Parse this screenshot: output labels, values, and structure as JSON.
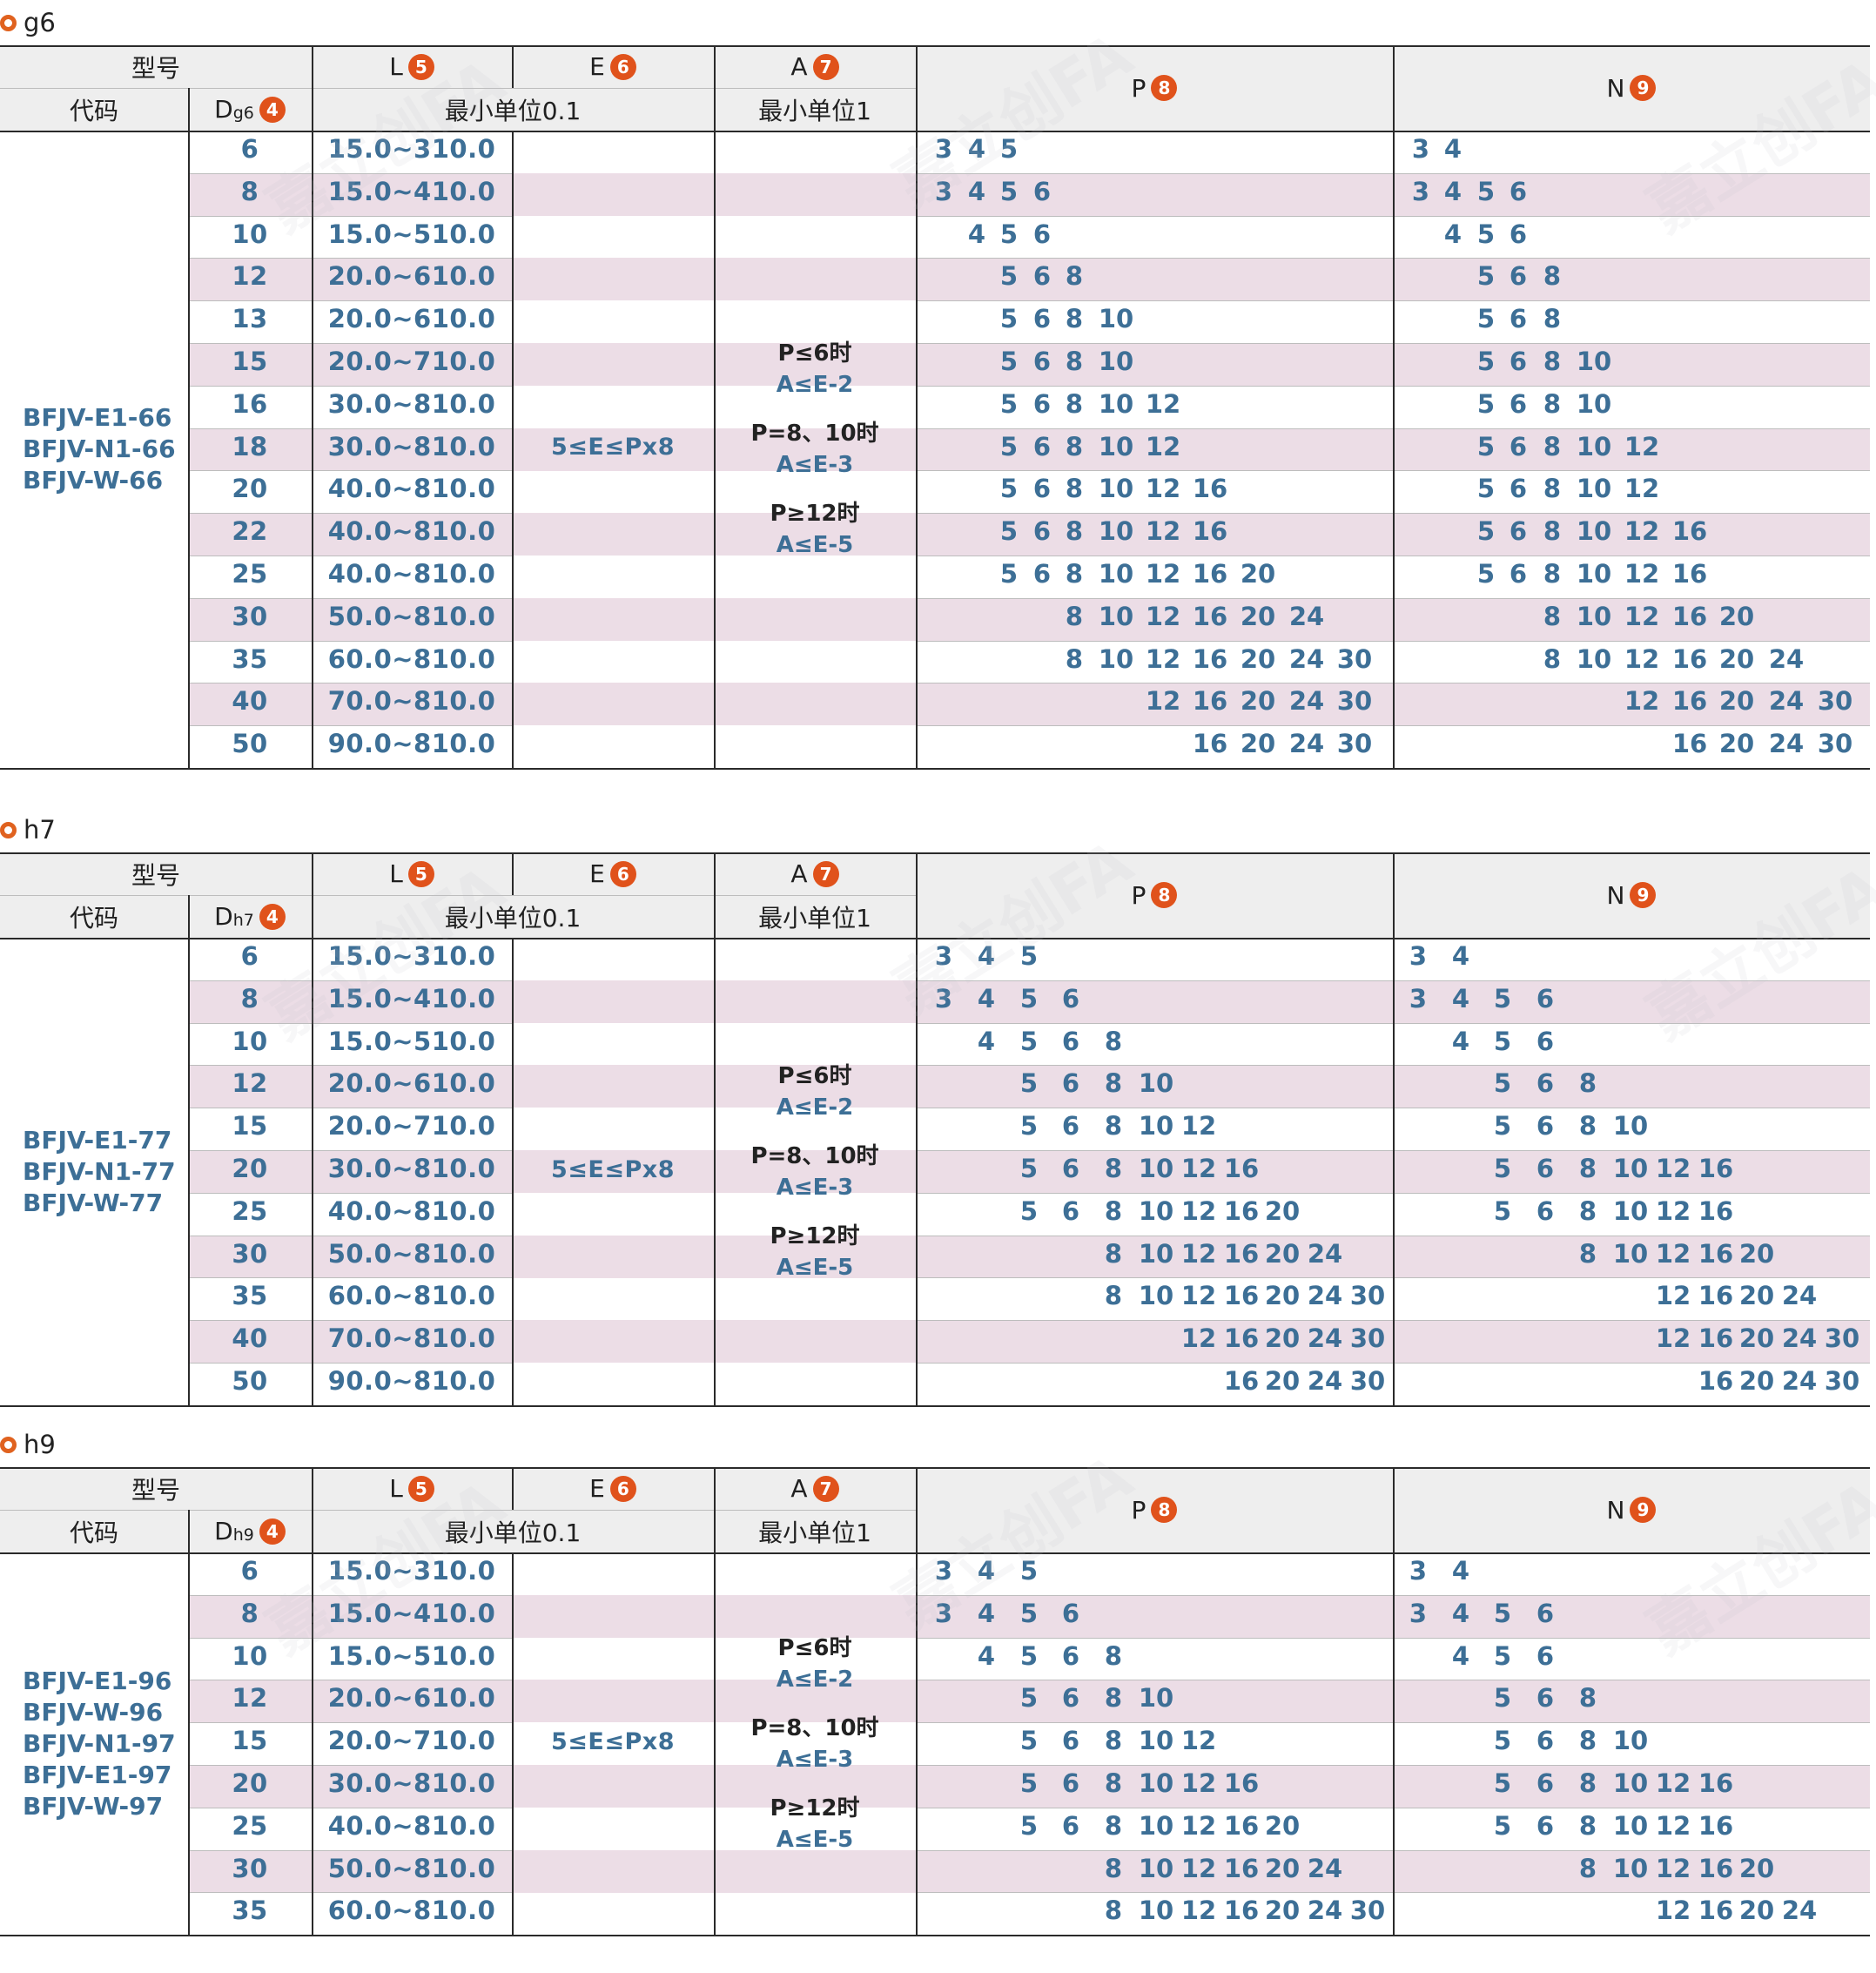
{
  "headers": {
    "model": "型号",
    "code": "代码",
    "L": "L",
    "E": "E",
    "A": "A",
    "P": "P",
    "N": "N",
    "min01": "最小单位0.1",
    "min1": "最小单位1",
    "n4": "4",
    "n5": "5",
    "n6": "6",
    "n7": "7",
    "n8": "8",
    "n9": "9"
  },
  "sections": [
    {
      "title": "g6",
      "d_label": "D",
      "d_sub": "g6",
      "codes": "BFJV-E1-66\nBFJV-N1-66\nBFJV-W-66",
      "e_value": "5≤E≤Px8",
      "cond": [
        "P≤6时",
        "A≤E-2",
        "P=8、10时",
        "A≤E-3",
        "P≥12时",
        "A≤E-5"
      ],
      "rows": [
        {
          "d": "6",
          "l": "15.0~310.0",
          "p": [
            "3",
            "4",
            "5"
          ],
          "n": [
            "3",
            "4"
          ]
        },
        {
          "d": "8",
          "l": "15.0~410.0",
          "p": [
            "3",
            "4",
            "5",
            "6"
          ],
          "n": [
            "3",
            "4",
            "5",
            "6"
          ]
        },
        {
          "d": "10",
          "l": "15.0~510.0",
          "p": [
            "4",
            "5",
            "6"
          ],
          "n": [
            "4",
            "5",
            "6"
          ]
        },
        {
          "d": "12",
          "l": "20.0~610.0",
          "p": [
            "5",
            "6",
            "8"
          ],
          "n": [
            "5",
            "6",
            "8"
          ]
        },
        {
          "d": "13",
          "l": "20.0~610.0",
          "p": [
            "5",
            "6",
            "8",
            "10"
          ],
          "n": [
            "5",
            "6",
            "8"
          ]
        },
        {
          "d": "15",
          "l": "20.0~710.0",
          "p": [
            "5",
            "6",
            "8",
            "10"
          ],
          "n": [
            "5",
            "6",
            "8",
            "10"
          ]
        },
        {
          "d": "16",
          "l": "30.0~810.0",
          "p": [
            "5",
            "6",
            "8",
            "10",
            "12"
          ],
          "n": [
            "5",
            "6",
            "8",
            "10"
          ]
        },
        {
          "d": "18",
          "l": "30.0~810.0",
          "p": [
            "5",
            "6",
            "8",
            "10",
            "12"
          ],
          "n": [
            "5",
            "6",
            "8",
            "10",
            "12"
          ]
        },
        {
          "d": "20",
          "l": "40.0~810.0",
          "p": [
            "5",
            "6",
            "8",
            "10",
            "12",
            "16"
          ],
          "n": [
            "5",
            "6",
            "8",
            "10",
            "12"
          ]
        },
        {
          "d": "22",
          "l": "40.0~810.0",
          "p": [
            "5",
            "6",
            "8",
            "10",
            "12",
            "16"
          ],
          "n": [
            "5",
            "6",
            "8",
            "10",
            "12",
            "16"
          ]
        },
        {
          "d": "25",
          "l": "40.0~810.0",
          "p": [
            "5",
            "6",
            "8",
            "10",
            "12",
            "16",
            "20"
          ],
          "n": [
            "5",
            "6",
            "8",
            "10",
            "12",
            "16"
          ]
        },
        {
          "d": "30",
          "l": "50.0~810.0",
          "p": [
            "8",
            "10",
            "12",
            "16",
            "20",
            "24"
          ],
          "n": [
            "8",
            "10",
            "12",
            "16",
            "20"
          ]
        },
        {
          "d": "35",
          "l": "60.0~810.0",
          "p": [
            "8",
            "10",
            "12",
            "16",
            "20",
            "24",
            "30"
          ],
          "n": [
            "8",
            "10",
            "12",
            "16",
            "20",
            "24"
          ]
        },
        {
          "d": "40",
          "l": "70.0~810.0",
          "p": [
            "12",
            "16",
            "20",
            "24",
            "30"
          ],
          "n": [
            "12",
            "16",
            "20",
            "24",
            "30"
          ]
        },
        {
          "d": "50",
          "l": "90.0~810.0",
          "p": [
            "16",
            "20",
            "24",
            "30"
          ],
          "n": [
            "16",
            "20",
            "24",
            "30"
          ]
        }
      ]
    },
    {
      "title": "h7",
      "d_label": "D",
      "d_sub": "h7",
      "codes": "BFJV-E1-77\nBFJV-N1-77\nBFJV-W-77",
      "e_value": "5≤E≤Px8",
      "cond": [
        "P≤6时",
        "A≤E-2",
        "P=8、10时",
        "A≤E-3",
        "P≥12时",
        "A≤E-5"
      ],
      "rows": [
        {
          "d": "6",
          "l": "15.0~310.0",
          "p": [
            "3",
            "4",
            "5"
          ],
          "n": [
            "3",
            "4"
          ]
        },
        {
          "d": "8",
          "l": "15.0~410.0",
          "p": [
            "3",
            "4",
            "5",
            "6"
          ],
          "n": [
            "3",
            "4",
            "5",
            "6"
          ]
        },
        {
          "d": "10",
          "l": "15.0~510.0",
          "p": [
            "4",
            "5",
            "6",
            "8"
          ],
          "n": [
            "4",
            "5",
            "6"
          ]
        },
        {
          "d": "12",
          "l": "20.0~610.0",
          "p": [
            "5",
            "6",
            "8",
            "10"
          ],
          "n": [
            "5",
            "6",
            "8"
          ]
        },
        {
          "d": "15",
          "l": "20.0~710.0",
          "p": [
            "5",
            "6",
            "8",
            "10",
            "12"
          ],
          "n": [
            "5",
            "6",
            "8",
            "10"
          ]
        },
        {
          "d": "20",
          "l": "30.0~810.0",
          "p": [
            "5",
            "6",
            "8",
            "10",
            "12",
            "16"
          ],
          "n": [
            "5",
            "6",
            "8",
            "10",
            "12",
            "16"
          ]
        },
        {
          "d": "25",
          "l": "40.0~810.0",
          "p": [
            "5",
            "6",
            "8",
            "10",
            "12",
            "16",
            "20"
          ],
          "n": [
            "5",
            "6",
            "8",
            "10",
            "12",
            "16"
          ]
        },
        {
          "d": "30",
          "l": "50.0~810.0",
          "p": [
            "8",
            "10",
            "12",
            "16",
            "20",
            "24"
          ],
          "n": [
            "8",
            "10",
            "12",
            "16",
            "20"
          ]
        },
        {
          "d": "35",
          "l": "60.0~810.0",
          "p": [
            "8",
            "10",
            "12",
            "16",
            "20",
            "24",
            "30"
          ],
          "n": [
            "12",
            "16",
            "20",
            "24"
          ]
        },
        {
          "d": "40",
          "l": "70.0~810.0",
          "p": [
            "12",
            "16",
            "20",
            "24",
            "30"
          ],
          "n": [
            "12",
            "16",
            "20",
            "24",
            "30"
          ]
        },
        {
          "d": "50",
          "l": "90.0~810.0",
          "p": [
            "16",
            "20",
            "24",
            "30"
          ],
          "n": [
            "16",
            "20",
            "24",
            "30"
          ]
        }
      ]
    },
    {
      "title": "h9",
      "d_label": "D",
      "d_sub": "h9",
      "codes": "BFJV-E1-96\nBFJV-W-96\nBFJV-N1-97\nBFJV-E1-97\nBFJV-W-97",
      "e_value": "5≤E≤Px8",
      "cond": [
        "P≤6时",
        "A≤E-2",
        "P=8、10时",
        "A≤E-3",
        "P≥12时",
        "A≤E-5"
      ],
      "rows": [
        {
          "d": "6",
          "l": "15.0~310.0",
          "p": [
            "3",
            "4",
            "5"
          ],
          "n": [
            "3",
            "4"
          ]
        },
        {
          "d": "8",
          "l": "15.0~410.0",
          "p": [
            "3",
            "4",
            "5",
            "6"
          ],
          "n": [
            "3",
            "4",
            "5",
            "6"
          ]
        },
        {
          "d": "10",
          "l": "15.0~510.0",
          "p": [
            "4",
            "5",
            "6",
            "8"
          ],
          "n": [
            "4",
            "5",
            "6"
          ]
        },
        {
          "d": "12",
          "l": "20.0~610.0",
          "p": [
            "5",
            "6",
            "8",
            "10"
          ],
          "n": [
            "5",
            "6",
            "8"
          ]
        },
        {
          "d": "15",
          "l": "20.0~710.0",
          "p": [
            "5",
            "6",
            "8",
            "10",
            "12"
          ],
          "n": [
            "5",
            "6",
            "8",
            "10"
          ]
        },
        {
          "d": "20",
          "l": "30.0~810.0",
          "p": [
            "5",
            "6",
            "8",
            "10",
            "12",
            "16"
          ],
          "n": [
            "5",
            "6",
            "8",
            "10",
            "12",
            "16"
          ]
        },
        {
          "d": "25",
          "l": "40.0~810.0",
          "p": [
            "5",
            "6",
            "8",
            "10",
            "12",
            "16",
            "20"
          ],
          "n": [
            "5",
            "6",
            "8",
            "10",
            "12",
            "16"
          ]
        },
        {
          "d": "30",
          "l": "50.0~810.0",
          "p": [
            "8",
            "10",
            "12",
            "16",
            "20",
            "24"
          ],
          "n": [
            "8",
            "10",
            "12",
            "16",
            "20"
          ]
        },
        {
          "d": "35",
          "l": "60.0~810.0",
          "p": [
            "8",
            "10",
            "12",
            "16",
            "20",
            "24",
            "30"
          ],
          "n": [
            "12",
            "16",
            "20",
            "24"
          ]
        }
      ]
    }
  ],
  "watermark": "嘉立创FA"
}
